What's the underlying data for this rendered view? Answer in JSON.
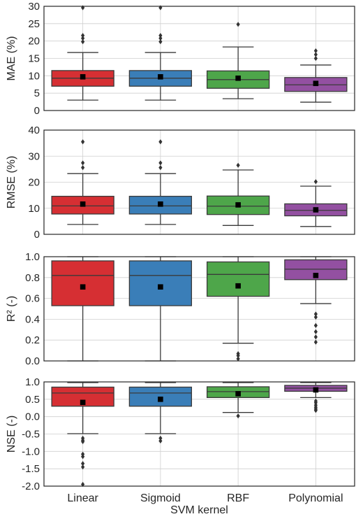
{
  "chart_data": {
    "type": "box",
    "categories": [
      "Linear",
      "Sigmoid",
      "RBF",
      "Polynomial"
    ],
    "colors": [
      "#d62f33",
      "#3a7eb8",
      "#4ea64a",
      "#9350a1"
    ],
    "xlabel": "SVM kernel",
    "grid": true,
    "subplots": [
      {
        "ylabel": "MAE (%)",
        "ylim": [
          0,
          30
        ],
        "yticks": [
          0,
          5,
          10,
          15,
          20,
          25,
          30
        ],
        "yticklabels": [
          "0",
          "5",
          "10",
          "15",
          "20",
          "25",
          "30"
        ],
        "boxes": [
          {
            "whislo": 3.0,
            "q1": 7.0,
            "median": 9.3,
            "q3": 11.5,
            "whishi": 16.7,
            "mean": 9.7,
            "fliers": [
              19.8,
              20.8,
              21.6,
              29.6
            ]
          },
          {
            "whislo": 3.0,
            "q1": 7.0,
            "median": 9.3,
            "q3": 11.5,
            "whishi": 16.7,
            "mean": 9.7,
            "fliers": [
              19.8,
              20.8,
              21.6,
              29.6
            ]
          },
          {
            "whislo": 3.4,
            "q1": 6.4,
            "median": 8.9,
            "q3": 11.4,
            "whishi": 18.3,
            "mean": 9.3,
            "fliers": [
              24.8
            ]
          },
          {
            "whislo": 2.4,
            "q1": 5.5,
            "median": 7.4,
            "q3": 9.5,
            "whishi": 13.1,
            "mean": 7.8,
            "fliers": [
              15.0,
              16.1,
              17.2
            ]
          }
        ]
      },
      {
        "ylabel": "RMSE (%)",
        "ylim": [
          0,
          40
        ],
        "yticks": [
          0,
          10,
          20,
          30,
          40
        ],
        "yticklabels": [
          "0",
          "10",
          "20",
          "30",
          "40"
        ],
        "boxes": [
          {
            "whislo": 3.8,
            "q1": 7.8,
            "median": 10.9,
            "q3": 14.6,
            "whishi": 23.3,
            "mean": 11.6,
            "fliers": [
              25.6,
              27.4,
              35.5
            ]
          },
          {
            "whislo": 3.8,
            "q1": 7.8,
            "median": 10.9,
            "q3": 14.6,
            "whishi": 23.3,
            "mean": 11.6,
            "fliers": [
              25.6,
              27.4,
              35.5
            ]
          },
          {
            "whislo": 3.4,
            "q1": 7.6,
            "median": 10.8,
            "q3": 14.7,
            "whishi": 24.7,
            "mean": 11.3,
            "fliers": [
              26.5
            ]
          },
          {
            "whislo": 3.0,
            "q1": 7.1,
            "median": 9.2,
            "q3": 11.7,
            "whishi": 18.5,
            "mean": 9.4,
            "fliers": [
              20.2
            ]
          }
        ]
      },
      {
        "ylabel": "R² (-)",
        "ylim": [
          0,
          1
        ],
        "yticks": [
          0,
          0.2,
          0.4,
          0.6,
          0.8,
          1.0
        ],
        "yticklabels": [
          "0.0",
          "0.2",
          "0.4",
          "0.6",
          "0.8",
          "1.0"
        ],
        "boxes": [
          {
            "whislo": 0.0,
            "q1": 0.53,
            "median": 0.82,
            "q3": 0.96,
            "whishi": 1.0,
            "mean": 0.71,
            "fliers": []
          },
          {
            "whislo": 0.0,
            "q1": 0.53,
            "median": 0.82,
            "q3": 0.96,
            "whishi": 1.0,
            "mean": 0.71,
            "fliers": []
          },
          {
            "whislo": 0.17,
            "q1": 0.62,
            "median": 0.83,
            "q3": 0.95,
            "whishi": 1.0,
            "mean": 0.72,
            "fliers": [
              0.02,
              0.05,
              0.07
            ]
          },
          {
            "whislo": 0.55,
            "q1": 0.78,
            "median": 0.88,
            "q3": 0.97,
            "whishi": 1.0,
            "mean": 0.82,
            "fliers": [
              0.18,
              0.23,
              0.28,
              0.34,
              0.42,
              0.45
            ]
          }
        ]
      },
      {
        "ylabel": "NSE (-)",
        "ylim": [
          -2,
          1
        ],
        "yticks": [
          -2.0,
          -1.5,
          -1.0,
          -0.5,
          0.0,
          0.5,
          1.0
        ],
        "yticklabels": [
          "-2.0",
          "-1.5",
          "-1.0",
          "-0.5",
          "0.0",
          "0.5",
          "1.0"
        ],
        "boxes": [
          {
            "whislo": -0.49,
            "q1": 0.3,
            "median": 0.68,
            "q3": 0.85,
            "whishi": 0.98,
            "mean": 0.41,
            "fliers": [
              -0.62,
              -0.68,
              -0.72,
              -1.08,
              -1.15,
              -1.35,
              -1.45,
              -1.95
            ]
          },
          {
            "whislo": -0.49,
            "q1": 0.3,
            "median": 0.68,
            "q3": 0.85,
            "whishi": 0.98,
            "mean": 0.5,
            "fliers": [
              -0.62,
              -0.7
            ]
          },
          {
            "whislo": 0.12,
            "q1": 0.55,
            "median": 0.72,
            "q3": 0.86,
            "whishi": 0.98,
            "mean": 0.66,
            "fliers": [
              0.02
            ]
          },
          {
            "whislo": 0.55,
            "q1": 0.73,
            "median": 0.82,
            "q3": 0.9,
            "whishi": 0.98,
            "mean": 0.77,
            "fliers": [
              0.18,
              0.22,
              0.27,
              0.33,
              0.4,
              0.45
            ]
          }
        ]
      }
    ]
  }
}
